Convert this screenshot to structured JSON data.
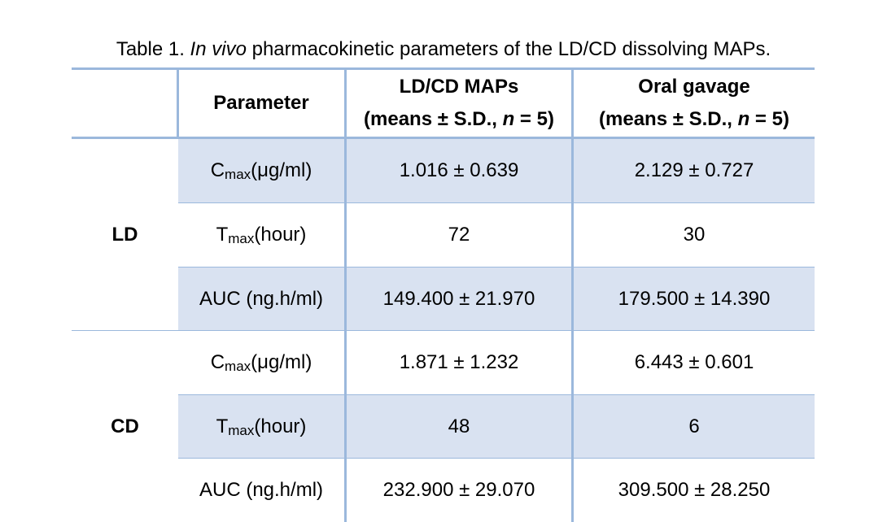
{
  "caption": {
    "prefix": "Table 1. ",
    "italic": "In vivo",
    "suffix": " pharmacokinetic parameters of the LD/CD dissolving MAPs."
  },
  "headers": {
    "parameter": "Parameter",
    "col1_line1": "LD/CD MAPs",
    "col1_line2_a": "(means ± S.D., ",
    "col1_line2_n": "n",
    "col1_line2_b": " = 5)",
    "col2_line1": "Oral gavage",
    "col2_line2_a": "(means ± S.D., ",
    "col2_line2_n": "n",
    "col2_line2_b": " = 5)"
  },
  "groups": [
    {
      "name": "LD",
      "rows": [
        {
          "param_main": "C",
          "param_sub": "max",
          "param_rest": " (μg/ml)",
          "maps": "1.016 ± 0.639",
          "oral": "2.129 ± 0.727"
        },
        {
          "param_main": "T",
          "param_sub": "max",
          "param_rest": " (hour)",
          "maps": "72",
          "oral": "30"
        },
        {
          "param_main": "AUC (ng.h/ml)",
          "param_sub": "",
          "param_rest": "",
          "maps": "149.400 ± 21.970",
          "oral": "179.500 ± 14.390"
        }
      ]
    },
    {
      "name": "CD",
      "rows": [
        {
          "param_main": "C",
          "param_sub": "max",
          "param_rest": " (μg/ml)",
          "maps": "1.871 ± 1.232",
          "oral": "6.443 ± 0.601"
        },
        {
          "param_main": "T",
          "param_sub": "max",
          "param_rest": " (hour)",
          "maps": "48",
          "oral": "6"
        },
        {
          "param_main": "AUC (ng.h/ml)",
          "param_sub": "",
          "param_rest": "",
          "maps": "232.900 ± 29.070",
          "oral": "309.500 ± 28.250"
        }
      ]
    }
  ]
}
